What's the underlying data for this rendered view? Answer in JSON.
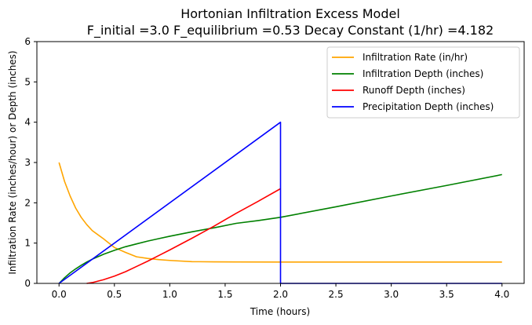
{
  "chart_data": {
    "type": "line",
    "title": "Hortonian Infiltration Excess Model",
    "subtitle": "F_initial =3.0 F_equilibrium =0.53 Decay Constant (1/hr) =4.182",
    "xlabel": "Time (hours)",
    "ylabel": "Infiltration Rate (inches/hour) or Depth (inches)",
    "xlim": [
      -0.2,
      4.2
    ],
    "ylim": [
      0,
      6
    ],
    "xticks": [
      "0.0",
      "0.5",
      "1.0",
      "1.5",
      "2.0",
      "2.5",
      "3.0",
      "3.5",
      "4.0"
    ],
    "yticks": [
      "0",
      "1",
      "2",
      "3",
      "4",
      "5",
      "6"
    ],
    "grid": false,
    "legend_position": "top-right",
    "series": [
      {
        "name": "Infiltration Rate (in/hr)",
        "color": "#ffa500",
        "x": [
          0.0,
          0.05,
          0.1,
          0.15,
          0.2,
          0.25,
          0.3,
          0.4,
          0.5,
          0.6,
          0.7,
          0.8,
          0.9,
          1.0,
          1.2,
          1.4,
          1.6,
          2.0,
          2.5,
          3.0,
          3.5,
          4.0
        ],
        "y": [
          3.0,
          2.53,
          2.17,
          1.87,
          1.64,
          1.46,
          1.31,
          1.11,
          0.89,
          0.77,
          0.66,
          0.62,
          0.59,
          0.57,
          0.54,
          0.535,
          0.532,
          0.53,
          0.53,
          0.53,
          0.53,
          0.53
        ]
      },
      {
        "name": "Infiltration Depth (inches)",
        "color": "#008000",
        "x": [
          0.0,
          0.05,
          0.1,
          0.15,
          0.2,
          0.25,
          0.3,
          0.4,
          0.5,
          0.6,
          0.7,
          0.8,
          0.9,
          1.0,
          1.2,
          1.4,
          1.6,
          1.8,
          2.0,
          2.5,
          3.0,
          3.5,
          4.0
        ],
        "y": [
          0.0,
          0.14,
          0.26,
          0.36,
          0.45,
          0.53,
          0.6,
          0.72,
          0.82,
          0.91,
          0.98,
          1.05,
          1.11,
          1.17,
          1.28,
          1.38,
          1.49,
          1.56,
          1.64,
          1.9,
          2.17,
          2.43,
          2.7
        ]
      },
      {
        "name": "Runoff Depth (inches)",
        "color": "#ff0000",
        "x": [
          0.25,
          0.3,
          0.4,
          0.5,
          0.6,
          0.7,
          0.8,
          0.9,
          1.0,
          1.2,
          1.4,
          1.6,
          1.8,
          2.0
        ],
        "y": [
          0.0,
          0.02,
          0.09,
          0.18,
          0.29,
          0.42,
          0.55,
          0.69,
          0.83,
          1.12,
          1.42,
          1.74,
          2.04,
          2.35
        ]
      },
      {
        "name": "Precipitation Depth (inches)",
        "color": "#0000ff",
        "x": [
          0.0,
          2.0,
          2.0,
          4.0
        ],
        "y": [
          0.0,
          4.0,
          0.0,
          0.0
        ]
      }
    ]
  }
}
